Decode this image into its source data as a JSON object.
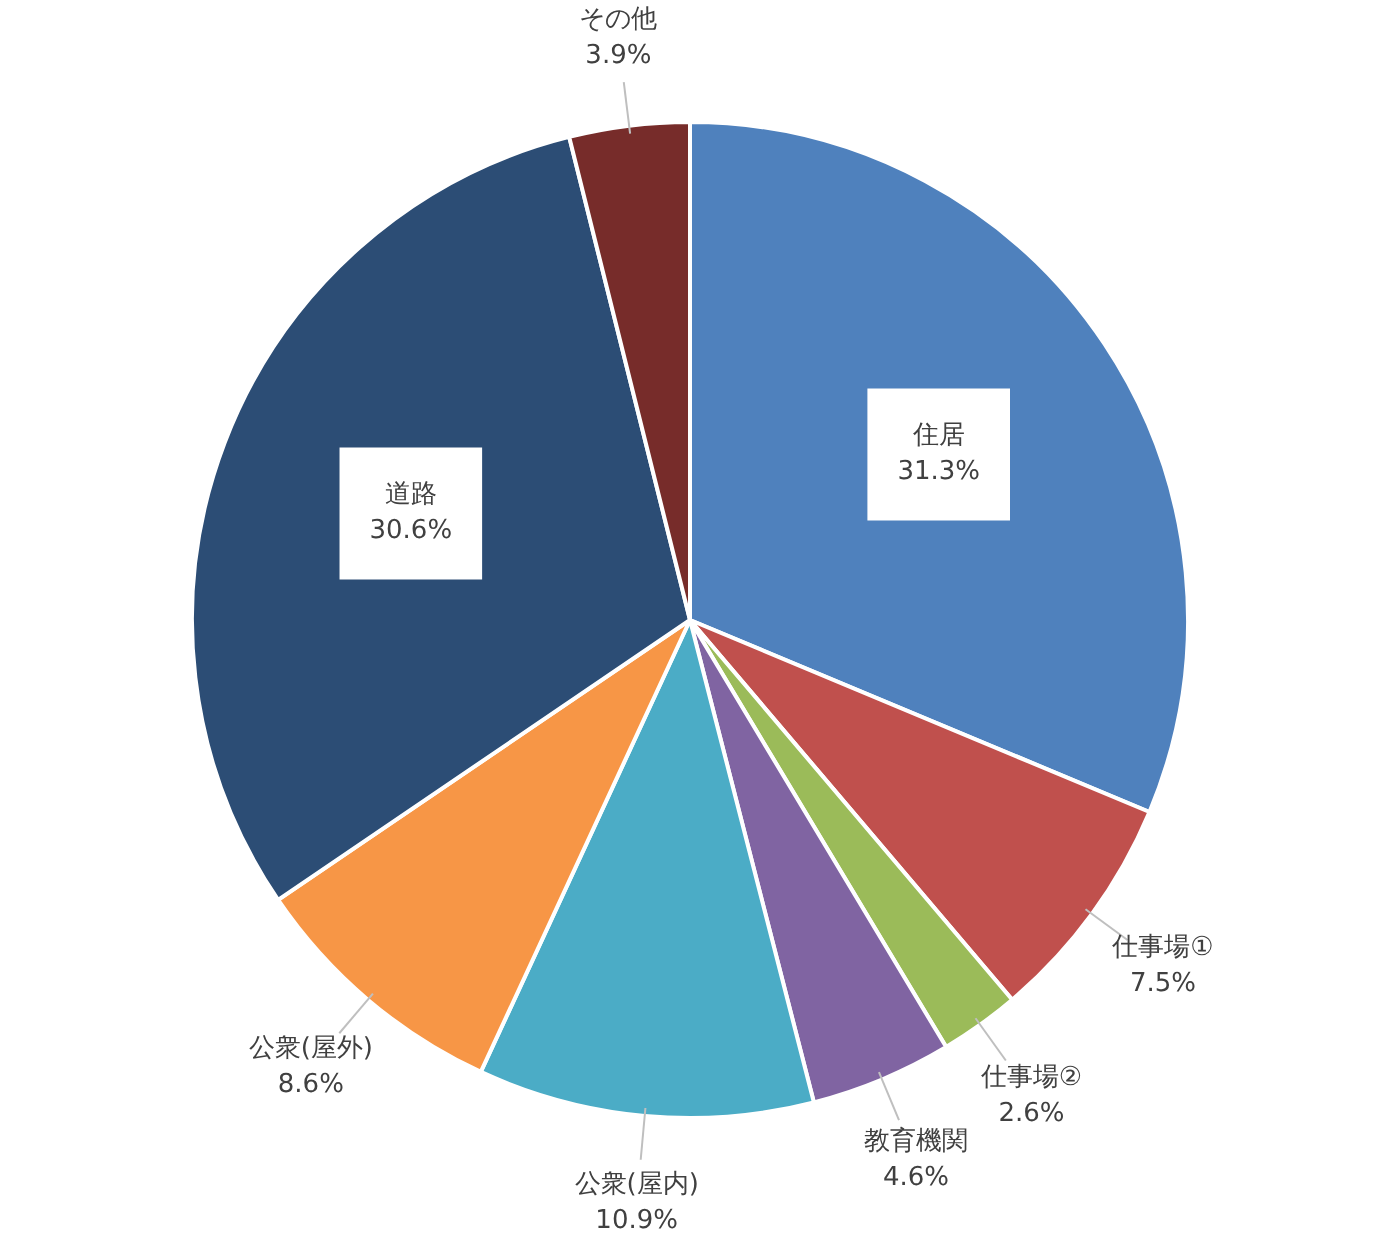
{
  "chart_data": {
    "type": "pie",
    "categories": [
      "住居",
      "仕事場①",
      "仕事場②",
      "教育機関",
      "公衆(屋内)",
      "公衆(屋外)",
      "道路",
      "その他"
    ],
    "values": [
      31.3,
      7.5,
      2.6,
      4.6,
      10.9,
      8.6,
      30.6,
      3.9
    ],
    "value_labels": [
      "31.3%",
      "7.5%",
      "2.6%",
      "4.6%",
      "10.9%",
      "8.6%",
      "30.6%",
      "3.9%"
    ],
    "colors": [
      "#4f81bd",
      "#c0504d",
      "#9bbb59",
      "#8064a2",
      "#4bacc6",
      "#f79646",
      "#2c4d75",
      "#772c2a"
    ],
    "legend": false
  }
}
